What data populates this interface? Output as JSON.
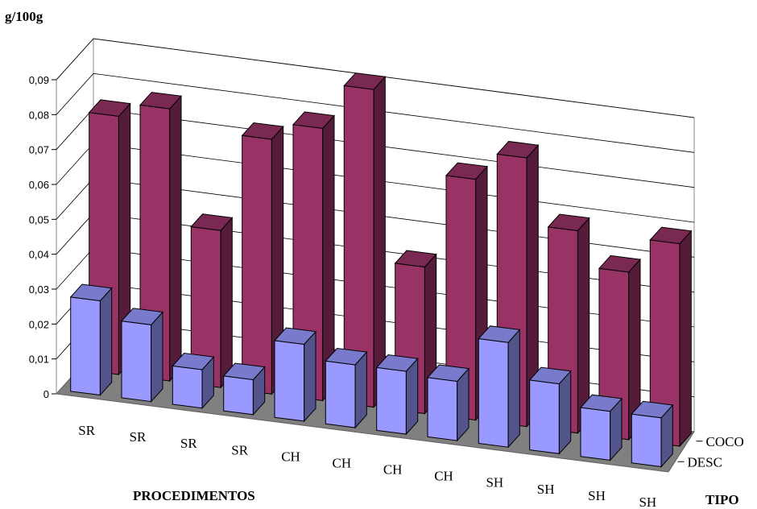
{
  "chart_data": {
    "type": "bar",
    "ylabel": "g/100g",
    "xlabel": "PROCEDIMENTOS",
    "zlabel": "TIPO",
    "y_ticks": [
      "0",
      "0,01",
      "0,02",
      "0,03",
      "0,04",
      "0,05",
      "0,06",
      "0,07",
      "0,08",
      "0,09"
    ],
    "ylim": [
      0,
      0.09
    ],
    "categories": [
      "SR",
      "SR",
      "SR",
      "SR",
      "CH",
      "CH",
      "CH",
      "CH",
      "SH",
      "SH",
      "SH",
      "SH"
    ],
    "series": [
      {
        "name": "DESC",
        "color": "#9999ff",
        "values": [
          0.027,
          0.022,
          0.011,
          0.01,
          0.022,
          0.018,
          0.018,
          0.017,
          0.03,
          0.02,
          0.014,
          0.014
        ]
      },
      {
        "name": "COCO",
        "color": "#993366",
        "values": [
          0.074,
          0.078,
          0.045,
          0.073,
          0.078,
          0.091,
          0.042,
          0.069,
          0.077,
          0.058,
          0.048,
          0.058
        ]
      }
    ],
    "grid": true,
    "depth_axis": true
  }
}
